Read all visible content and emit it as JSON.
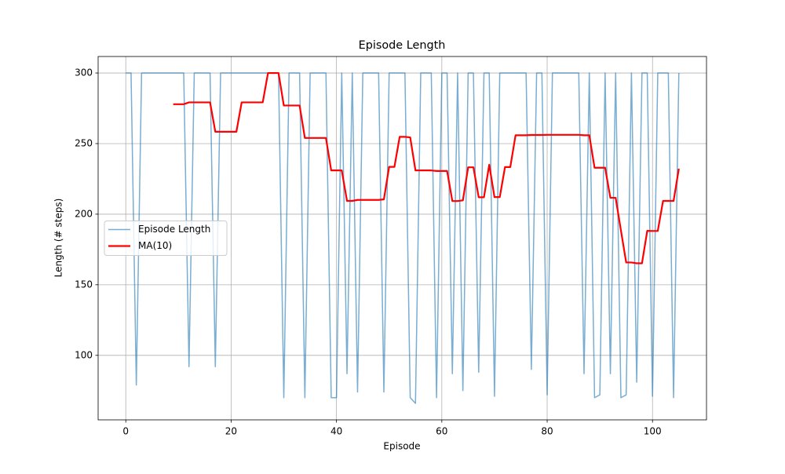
{
  "chart_data": {
    "type": "line",
    "title": "Episode Length",
    "x_label": "Episode",
    "y_label": "Length (# steps)",
    "x": [
      0,
      1,
      2,
      3,
      4,
      5,
      6,
      7,
      8,
      9,
      10,
      11,
      12,
      13,
      14,
      15,
      16,
      17,
      18,
      19,
      20,
      21,
      22,
      23,
      24,
      25,
      26,
      27,
      28,
      29,
      30,
      31,
      32,
      33,
      34,
      35,
      36,
      37,
      38,
      39,
      40,
      41,
      42,
      43,
      44,
      45,
      46,
      47,
      48,
      49,
      50,
      51,
      52,
      53,
      54,
      55,
      56,
      57,
      58,
      59,
      60,
      61,
      62,
      63,
      64,
      65,
      66,
      67,
      68,
      69,
      70,
      71,
      72,
      73,
      74,
      75,
      76,
      77,
      78,
      79,
      80,
      81,
      82,
      83,
      84,
      85,
      86,
      87,
      88,
      89,
      90,
      91,
      92,
      93,
      94,
      95,
      96,
      97,
      98,
      99,
      100,
      101,
      102,
      103,
      104,
      105
    ],
    "series": [
      {
        "name": "Episode Length",
        "color": "#1f77b4",
        "values": [
          300,
          300,
          79,
          300,
          300,
          300,
          300,
          300,
          300,
          300,
          300,
          300,
          92,
          300,
          300,
          300,
          300,
          92,
          300,
          300,
          300,
          300,
          300,
          300,
          300,
          300,
          300,
          300,
          300,
          300,
          70,
          300,
          300,
          300,
          70,
          300,
          300,
          300,
          300,
          70,
          70,
          300,
          87,
          300,
          74,
          300,
          300,
          300,
          300,
          74,
          300,
          300,
          300,
          300,
          70,
          66,
          300,
          300,
          300,
          70,
          300,
          300,
          87,
          300,
          75,
          300,
          300,
          88,
          300,
          300,
          71,
          300,
          300,
          300,
          300,
          300,
          300,
          90,
          300,
          300,
          72,
          300,
          300,
          300,
          300,
          300,
          300,
          87,
          300,
          70,
          72,
          300,
          87,
          300,
          70,
          72,
          300,
          81,
          300,
          300,
          71,
          300,
          300,
          300,
          70,
          300
        ]
      },
      {
        "name": "MA(10)",
        "color": "#ff0000",
        "values": [
          null,
          null,
          null,
          null,
          null,
          null,
          null,
          null,
          null,
          277.9,
          277.9,
          277.9,
          279.2,
          279.2,
          279.2,
          279.2,
          279.2,
          258.4,
          258.4,
          258.4,
          258.4,
          258.4,
          279.2,
          279.2,
          279.2,
          279.2,
          279.2,
          300,
          300,
          300,
          277,
          277,
          277,
          277,
          254,
          254,
          254,
          254,
          254,
          231,
          231,
          231,
          209.4,
          209.4,
          210.1,
          210.1,
          210.1,
          210.1,
          210.1,
          210.5,
          233.5,
          233.5,
          254.8,
          254.8,
          254.4,
          231,
          231,
          231,
          231,
          230.6,
          230.6,
          230.6,
          209.3,
          209.3,
          209.8,
          233.2,
          233.2,
          212,
          212,
          235,
          212.1,
          212.1,
          233.4,
          233.4,
          255.9,
          255.9,
          255.9,
          256.1,
          256.1,
          256.1,
          256.2,
          256.2,
          256.2,
          256.2,
          256.2,
          256.2,
          256.2,
          255.9,
          255.9,
          232.9,
          232.9,
          232.9,
          211.6,
          211.6,
          188.6,
          165.8,
          165.8,
          165.2,
          165.2,
          188.2,
          188.1,
          188.1,
          209.4,
          209.4,
          209.4,
          232.2
        ]
      }
    ],
    "xlim": [
      -5.25,
      110.25
    ],
    "ylim": [
      54.3,
      311.7
    ],
    "xticks": [
      0,
      20,
      40,
      60,
      80,
      100
    ],
    "yticks": [
      100,
      150,
      200,
      250,
      300
    ],
    "grid": true,
    "legend": "center left"
  }
}
